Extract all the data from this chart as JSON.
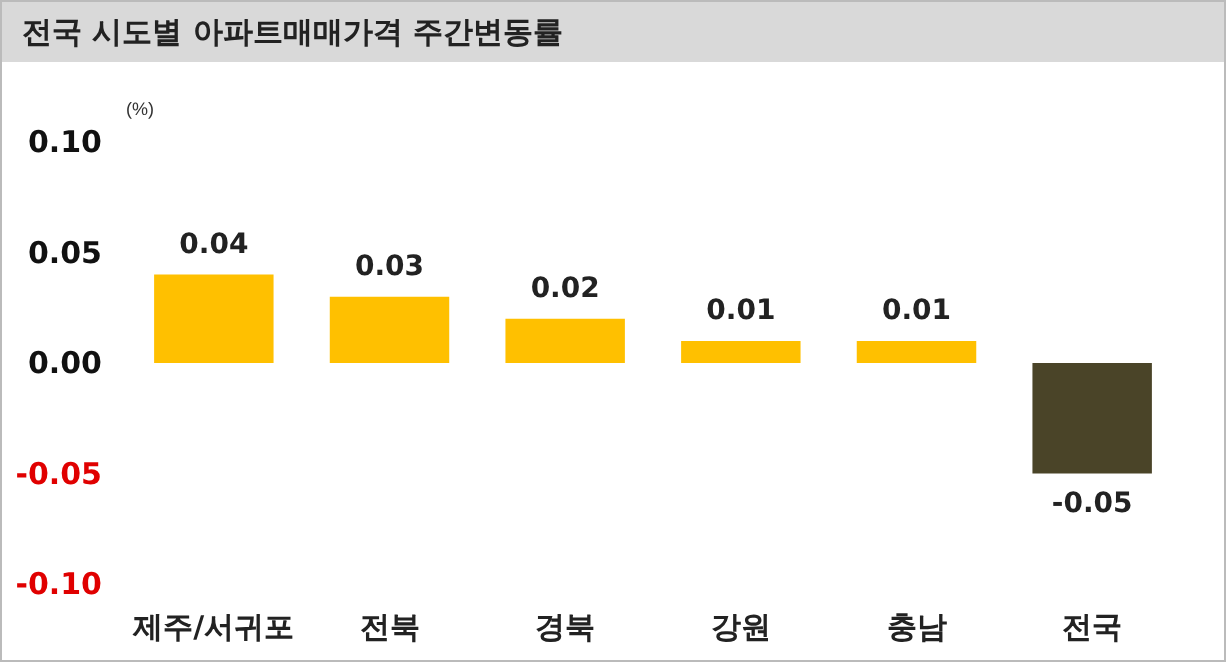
{
  "chart_data": {
    "type": "bar",
    "title": "전국 시도별 아파트매매가격 주간변동률",
    "ylabel": "(%)",
    "categories": [
      "제주/서귀포",
      "전북",
      "경북",
      "강원",
      "충남",
      "전국"
    ],
    "values": [
      0.04,
      0.03,
      0.02,
      0.01,
      0.01,
      -0.05
    ],
    "colors": [
      "#ffc000",
      "#ffc000",
      "#ffc000",
      "#ffc000",
      "#ffc000",
      "#4a4428"
    ],
    "ylim": [
      -0.1,
      0.1
    ],
    "yticks": [
      {
        "value": -0.1,
        "label": "-0.10"
      },
      {
        "value": -0.05,
        "label": "-0.05"
      },
      {
        "value": 0,
        "label": "0.00"
      },
      {
        "value": 0.05,
        "label": "0.05"
      },
      {
        "value": 0.1,
        "label": "0.10"
      }
    ],
    "data_labels": true
  }
}
